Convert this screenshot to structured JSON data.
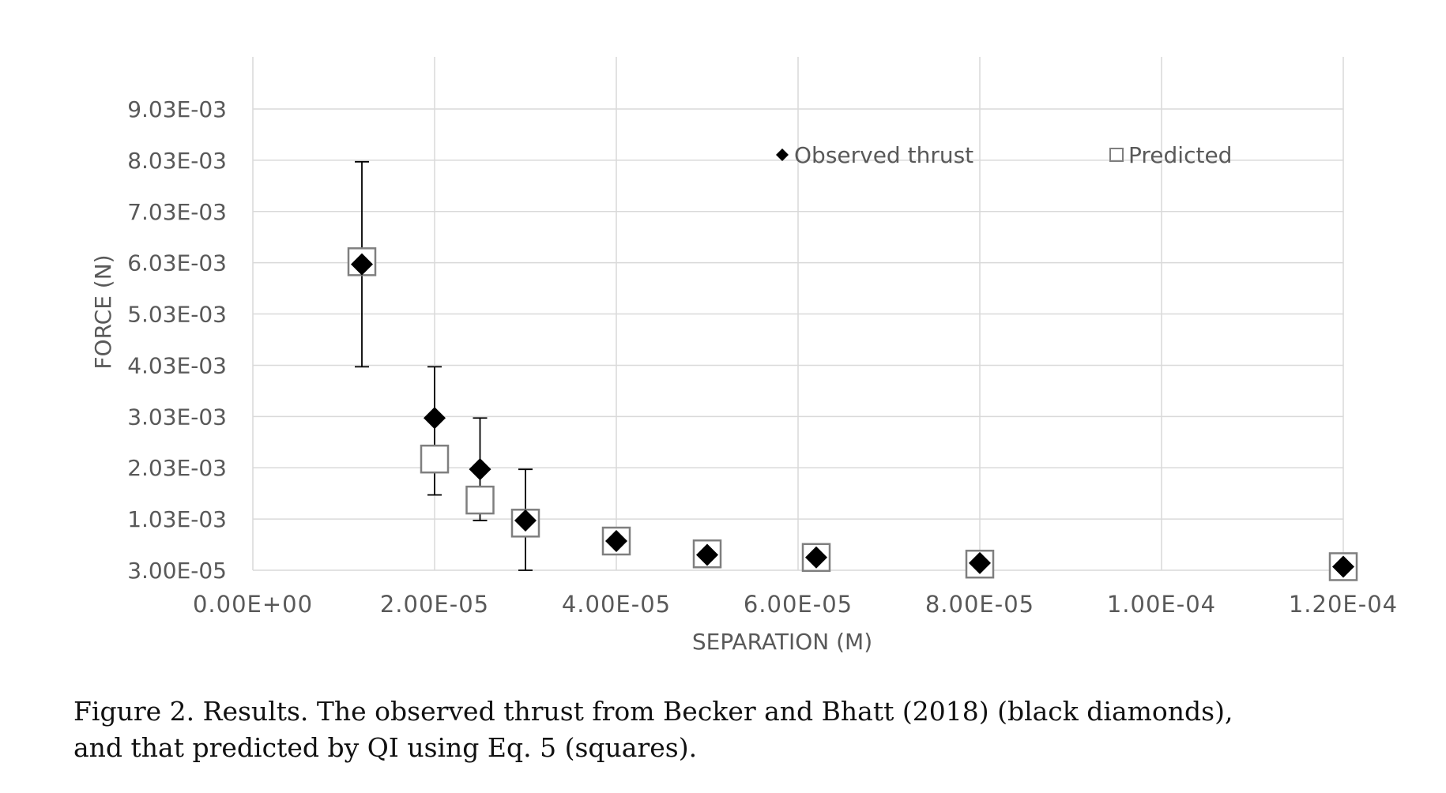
{
  "chart_data": {
    "type": "scatter",
    "xlabel": "SEPARATION (M)",
    "ylabel": "FORCE (N)",
    "xlim": [
      0,
      0.00012
    ],
    "ylim": [
      3e-05,
      0.00903
    ],
    "x_ticks": [
      0,
      2e-05,
      4e-05,
      6e-05,
      8e-05,
      0.0001,
      0.00012
    ],
    "x_tick_labels": [
      "0.00E+00",
      "2.00E-05",
      "4.00E-05",
      "6.00E-05",
      "8.00E-05",
      "1.00E-04",
      "1.20E-04"
    ],
    "y_ticks": [
      3e-05,
      0.00103,
      0.00203,
      0.00303,
      0.00403,
      0.00503,
      0.00603,
      0.00703,
      0.00803,
      0.00903
    ],
    "y_tick_labels": [
      "3.00E-05",
      "1.03E-03",
      "2.03E-03",
      "3.03E-03",
      "4.03E-03",
      "5.03E-03",
      "6.03E-03",
      "7.03E-03",
      "8.03E-03",
      "9.03E-03"
    ],
    "grid": true,
    "legend_position": "top-right",
    "series": [
      {
        "name": "Observed thrust",
        "marker": "diamond-filled",
        "color": "#000000",
        "points": [
          {
            "x": 1.2e-05,
            "y": 0.006,
            "yerr_low": 0.004,
            "yerr_high": 0.008
          },
          {
            "x": 2e-05,
            "y": 0.003,
            "yerr_low": 0.0015,
            "yerr_high": 0.004
          },
          {
            "x": 2.5e-05,
            "y": 0.002,
            "yerr_low": 0.001,
            "yerr_high": 0.003
          },
          {
            "x": 3e-05,
            "y": 0.001,
            "yerr_low": 3e-05,
            "yerr_high": 0.002
          },
          {
            "x": 4e-05,
            "y": 0.0006
          },
          {
            "x": 5e-05,
            "y": 0.00033
          },
          {
            "x": 6.2e-05,
            "y": 0.00028
          },
          {
            "x": 8e-05,
            "y": 0.00017
          },
          {
            "x": 0.00012,
            "y": 0.0001
          }
        ]
      },
      {
        "name": "Predicted",
        "marker": "square-open",
        "color": "#7f7f7f",
        "points": [
          {
            "x": 1.2e-05,
            "y": 0.00605
          },
          {
            "x": 2e-05,
            "y": 0.0022
          },
          {
            "x": 2.5e-05,
            "y": 0.0014
          },
          {
            "x": 3e-05,
            "y": 0.00095
          },
          {
            "x": 4e-05,
            "y": 0.0006
          },
          {
            "x": 5e-05,
            "y": 0.00035
          },
          {
            "x": 6.2e-05,
            "y": 0.00028
          },
          {
            "x": 8e-05,
            "y": 0.00015
          },
          {
            "x": 0.00012,
            "y": 0.0001
          }
        ]
      }
    ]
  },
  "caption": "Figure 2. Results. The observed thrust from Becker and Bhatt (2018) (black diamonds), and that predicted by QI using Eq. 5 (squares)."
}
